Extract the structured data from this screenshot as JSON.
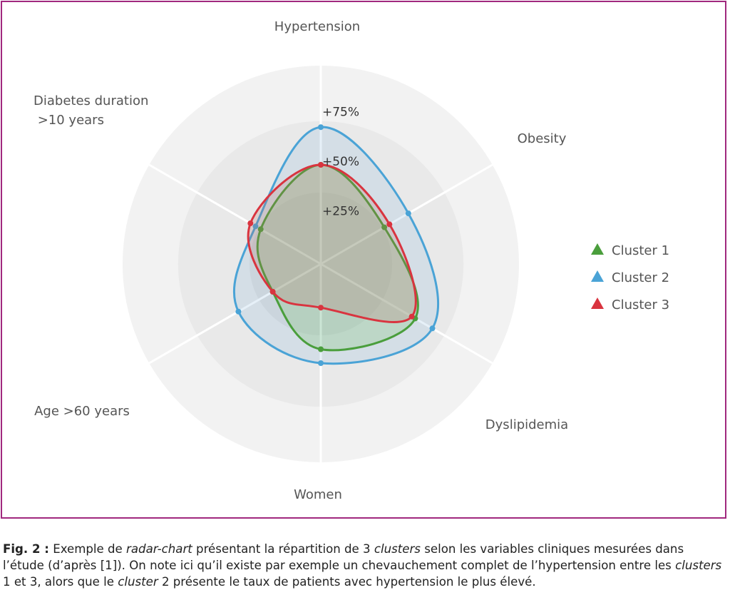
{
  "chart_data": {
    "type": "radar",
    "axes": [
      "Hypertension",
      "Obesity",
      "Dyslipidemia",
      "Women",
      "Age >60 years",
      "Diabetes duration >10 years"
    ],
    "axis_label_lines": [
      [
        "Hypertension"
      ],
      [
        "Obesity"
      ],
      [
        "Dyslipidemia"
      ],
      [
        "Women"
      ],
      [
        "Age >60 years"
      ],
      [
        "Diabetes duration",
        " >10 years"
      ]
    ],
    "rmax": 100,
    "ticks": [
      25,
      50,
      75
    ],
    "tick_labels": [
      "+25%",
      "+50%",
      "+75%"
    ],
    "grid": true,
    "legend_position": "right",
    "series": [
      {
        "name": "Cluster 1",
        "color": "#4a9e3c",
        "fill": "rgba(110,190,90,0.22)",
        "values": [
          50,
          37,
          55,
          43,
          28,
          35
        ]
      },
      {
        "name": "Cluster 2",
        "color": "#4aa3d6",
        "fill": "rgba(130,180,220,0.20)",
        "values": [
          69,
          51,
          65,
          50,
          48,
          38
        ]
      },
      {
        "name": "Cluster 3",
        "color": "#d9343f",
        "fill": "rgba(180,110,100,0.22)",
        "values": [
          50,
          40,
          53,
          22,
          28,
          41
        ]
      }
    ]
  },
  "caption": {
    "fig_label": "Fig. 2 :",
    "part1": " Exemple de ",
    "italic1": "radar-chart",
    "part2": " présentant la répartition de 3 ",
    "italic2": "clusters",
    "part3": " selon les variables cliniques mesurées dans l’étude (d’après [1]). On note ici qu’il existe par exemple un chevauchement complet de l’hypertension entre les ",
    "italic3": "clusters",
    "part4": " 1 et 3, alors que le ",
    "italic4": "cluster",
    "part5": " 2 présente le taux de patients avec hypertension le plus élevé."
  }
}
